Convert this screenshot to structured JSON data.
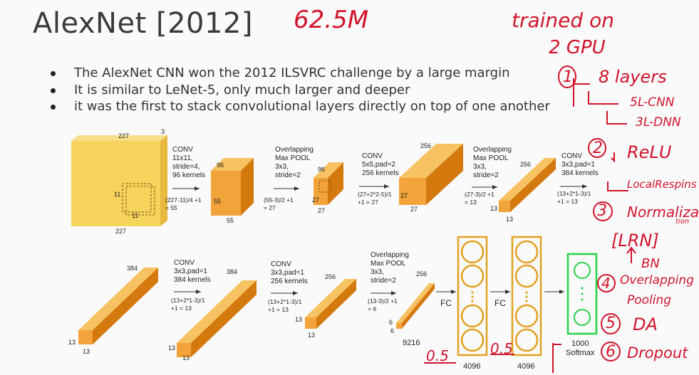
{
  "title": "AlexNet [2012]",
  "bullets": [
    "The AlexNet CNN won the 2012 ILSVRC challenge by a large margin",
    "It is similar to LeNet-5, only much larger and deeper",
    "it was the first to stack convolutional layers directly on top of one another"
  ],
  "annotations": {
    "params": "62.5M",
    "trained_1": "trained on",
    "trained_2": "2 GPU",
    "n1": "1",
    "layers": "8 layers",
    "cnn": "5L-CNN",
    "dnn": "3L-DNN",
    "n2": "2",
    "relu": "ReLU",
    "local": "LocalRespins",
    "n3": "3",
    "norm1": "Normaliza",
    "norm2": "tion",
    "lrn": "[LRN]",
    "bn": "BN",
    "n4": "4",
    "overlap1": "Overlapping",
    "overlap2": "Pooling",
    "n5": "5",
    "da": "DA",
    "n6": "6",
    "dropout": "Dropout",
    "drop1": "0.5",
    "drop2": "0.5"
  },
  "diagram": {
    "input": {
      "w": "227",
      "h": "227",
      "d": "3",
      "k": "11",
      "k2": "11"
    },
    "conv1": {
      "title": "CONV",
      "l1": "11x11,",
      "l2": "stride=4,",
      "l3": "96 kernels",
      "f1": "(227-11)/4 +1",
      "f2": "= 55"
    },
    "vol1": {
      "d": "96",
      "h": "55",
      "w": "55"
    },
    "pool1": {
      "t1": "Overlapping",
      "t2": "Max POOL",
      "l1": "3x3,",
      "l2": "stride=2",
      "f1": "(55-3)/2 +1",
      "f2": "= 27"
    },
    "vol2": {
      "d": "96",
      "h": "27",
      "w": "27"
    },
    "conv2": {
      "title": "CONV",
      "l1": "5x5,pad=2",
      "l2": "256 kernels",
      "f1": "(27+2*2-5)/1",
      "f2": "+1 = 27"
    },
    "vol3": {
      "d": "256",
      "h": "27",
      "w": "27"
    },
    "pool2": {
      "t1": "Overlapping",
      "t2": "Max POOL",
      "l1": "3x3,",
      "l2": "stride=2",
      "f1": "(27-3)/2 +1",
      "f2": "= 13"
    },
    "vol4": {
      "d": "256",
      "h": "13",
      "w": "13"
    },
    "conv3": {
      "title": "CONV",
      "l1": "3x3,pad=1",
      "l2": "384 kernels",
      "f1": "(13+2*1-3)/1",
      "f2": "+1 = 13"
    },
    "vol5": {
      "d": "384",
      "h": "13",
      "w": "13"
    },
    "conv4": {
      "title": "CONV",
      "l1": "3x3,pad=1",
      "l2": "384 kernels",
      "f1": "(13+2*1-3)/1",
      "f2": "+1 = 13"
    },
    "vol6": {
      "d": "384",
      "h": "13",
      "w": "13"
    },
    "conv5": {
      "title": "CONV",
      "l1": "3x3,pad=1",
      "l2": "256 kernels",
      "f1": "(13+2*1-3)/1",
      "f2": "+1 = 13"
    },
    "vol7": {
      "d": "256",
      "h": "13",
      "w": "13"
    },
    "pool3": {
      "t1": "Overlapping",
      "t2": "Max POOL",
      "l1": "3x3,",
      "l2": "stride=2",
      "f1": "(13-3)/2 +1",
      "f2": "= 6"
    },
    "vol8": {
      "d": "256",
      "h": "6",
      "w": "6"
    },
    "flat": "9216",
    "fc1": "FC",
    "fc2": "FC",
    "fc1_size": "4096",
    "fc2_size": "4096",
    "out_size": "1000",
    "softmax": "Softmax",
    "dots": "⋮"
  },
  "colors": {
    "box_front": "#f2a33a",
    "box_top": "#f7c261",
    "box_side": "#d4790e",
    "input": "#f6d35b",
    "fc_border": "#e3a020",
    "softmax_border": "#27d24a",
    "ink": "#d0142b"
  }
}
